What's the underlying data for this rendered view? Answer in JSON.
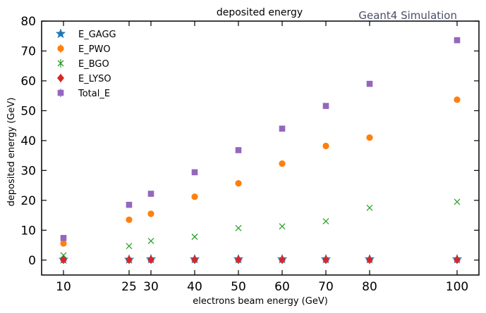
{
  "chart_data": {
    "type": "scatter",
    "title": "deposited energy",
    "annotation": "Geant4 Simulation",
    "xlabel": "electrons beam energy (GeV)",
    "ylabel": "deposited energy (GeV)",
    "xlim": [
      5,
      105
    ],
    "ylim": [
      -5,
      80
    ],
    "xticks": [
      10,
      25,
      30,
      40,
      50,
      60,
      70,
      80,
      100
    ],
    "yticks": [
      0,
      10,
      20,
      30,
      40,
      50,
      60,
      70,
      80
    ],
    "x": [
      10,
      25,
      30,
      40,
      50,
      60,
      70,
      80,
      100
    ],
    "legend_position": "top-left",
    "series": [
      {
        "name": "E_GAGG",
        "marker": "star",
        "color": "#1f77b4",
        "values": [
          0.2,
          0.2,
          0.3,
          0.3,
          0.3,
          0.3,
          0.3,
          0.3,
          0.3
        ]
      },
      {
        "name": "E_PWO",
        "marker": "circle",
        "color": "#ff7f0e",
        "values": [
          5.6,
          13.5,
          15.5,
          21.2,
          25.7,
          32.3,
          38.2,
          41.0,
          53.7
        ]
      },
      {
        "name": "E_BGO",
        "marker": "x",
        "color": "#2ca02c",
        "values": [
          1.6,
          4.7,
          6.4,
          7.8,
          10.7,
          11.3,
          13.0,
          17.5,
          19.5
        ]
      },
      {
        "name": "E_LYSO",
        "marker": "diamond",
        "color": "#d62728",
        "values": [
          0.1,
          0.1,
          0.1,
          0.1,
          0.1,
          0.1,
          0.1,
          0.1,
          0.1
        ]
      },
      {
        "name": "Total_E",
        "marker": "square",
        "color": "#9467bd",
        "values": [
          7.4,
          18.5,
          22.2,
          29.4,
          36.8,
          44.0,
          51.6,
          59.0,
          73.6
        ]
      }
    ]
  }
}
